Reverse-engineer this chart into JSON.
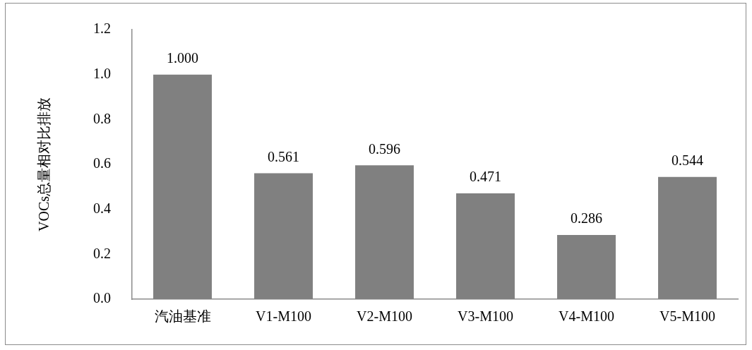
{
  "chart_data": {
    "type": "bar",
    "ylabel": "VOCs总量相对比排放",
    "categories": [
      "汽油基准",
      "V1-M100",
      "V2-M100",
      "V3-M100",
      "V4-M100",
      "V5-M100"
    ],
    "values": [
      1.0,
      0.561,
      0.596,
      0.471,
      0.286,
      0.544
    ],
    "color": "#808080",
    "ylim": [
      0,
      1.2
    ],
    "yticks": [
      {
        "value": 0,
        "label": "0.0"
      },
      {
        "value": 0.2,
        "label": "0.2"
      },
      {
        "value": 0.4,
        "label": "0.4"
      },
      {
        "value": 0.6,
        "label": "0.6"
      },
      {
        "value": 0.8,
        "label": "0.8"
      },
      {
        "value": 1.0,
        "label": "1.0"
      },
      {
        "value": 1.2,
        "label": "1.2"
      }
    ],
    "value_labels": [
      "1.000",
      "0.561",
      "0.596",
      "0.471",
      "0.286",
      "0.544"
    ],
    "grid": false,
    "legend": false
  }
}
